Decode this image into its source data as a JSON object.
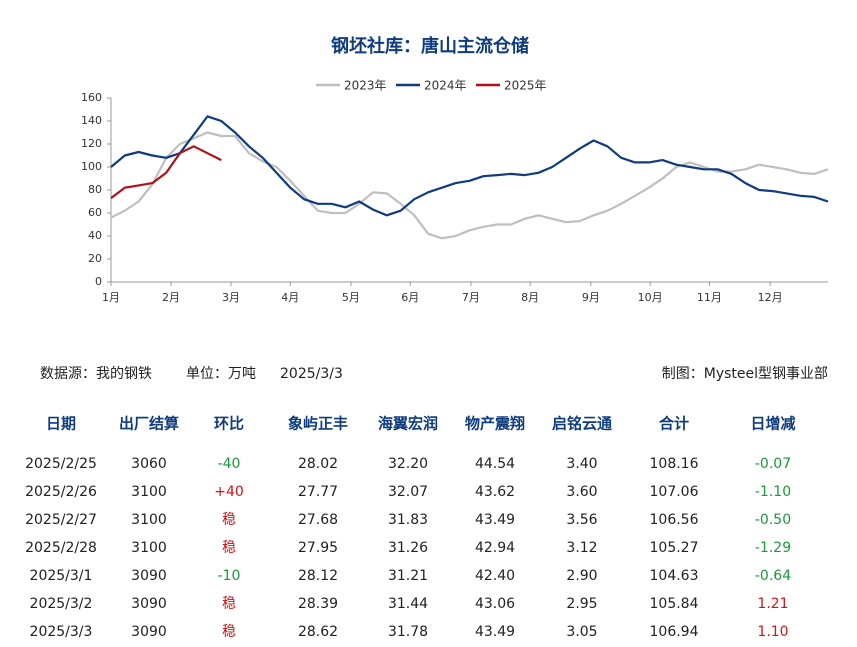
{
  "chart_data": {
    "type": "line",
    "title": "钢坯社库：唐山主流仓储",
    "x": [
      0,
      1,
      2,
      3,
      4,
      5,
      6,
      7,
      8,
      9,
      10,
      11,
      12,
      13,
      14,
      15,
      16,
      17,
      18,
      19,
      20,
      21,
      22,
      23,
      24,
      25,
      26,
      27,
      28,
      29,
      30,
      31,
      32,
      33,
      34,
      35,
      36,
      37,
      38,
      39,
      40,
      41,
      42,
      43,
      44,
      45,
      46,
      47,
      48,
      49,
      50,
      51,
      52
    ],
    "xlim": [
      0,
      52
    ],
    "xticks": [
      {
        "value": 0,
        "label": "1月"
      },
      {
        "value": 4.35,
        "label": "2月"
      },
      {
        "value": 8.7,
        "label": "3月"
      },
      {
        "value": 13.0,
        "label": "4月"
      },
      {
        "value": 17.4,
        "label": "5月"
      },
      {
        "value": 21.7,
        "label": "6月"
      },
      {
        "value": 26.1,
        "label": "7月"
      },
      {
        "value": 30.4,
        "label": "8月"
      },
      {
        "value": 34.8,
        "label": "9月"
      },
      {
        "value": 39.1,
        "label": "10月"
      },
      {
        "value": 43.4,
        "label": "11月"
      },
      {
        "value": 47.8,
        "label": "12月"
      }
    ],
    "ylim": [
      0,
      160
    ],
    "yticks": [
      0,
      20,
      40,
      60,
      80,
      100,
      120,
      140,
      160
    ],
    "legend": "top",
    "series": [
      {
        "name": "2023年",
        "color": "#bfbfbf",
        "values": [
          56,
          62,
          70,
          85,
          108,
          120,
          125,
          130,
          127,
          127,
          112,
          105,
          100,
          88,
          75,
          62,
          60,
          60,
          68,
          78,
          77,
          68,
          58,
          42,
          38,
          40,
          45,
          48,
          50,
          50,
          55,
          58,
          55,
          52,
          53,
          58,
          62,
          68,
          75,
          82,
          90,
          100,
          104,
          100,
          96,
          96,
          98,
          102,
          100,
          98,
          95,
          94,
          98
        ]
      },
      {
        "name": "2024年",
        "color": "#0f3b7f",
        "values": [
          100,
          110,
          113,
          110,
          108,
          112,
          128,
          144,
          140,
          130,
          118,
          108,
          95,
          82,
          72,
          68,
          68,
          65,
          70,
          63,
          58,
          62,
          72,
          78,
          82,
          86,
          88,
          92,
          93,
          94,
          93,
          95,
          100,
          108,
          116,
          123,
          118,
          108,
          104,
          104,
          106,
          102,
          100,
          98,
          98,
          94,
          86,
          80,
          79,
          77,
          75,
          74,
          70
        ]
      },
      {
        "name": "2025年",
        "color": "#b01018",
        "values": [
          73,
          82,
          84,
          86,
          95,
          112,
          118,
          112,
          106,
          null,
          null,
          null,
          null,
          null,
          null,
          null,
          null,
          null,
          null,
          null,
          null,
          null,
          null,
          null,
          null,
          null,
          null,
          null,
          null,
          null,
          null,
          null,
          null,
          null,
          null,
          null,
          null,
          null,
          null,
          null,
          null,
          null,
          null,
          null,
          null,
          null,
          null,
          null,
          null,
          null,
          null,
          null,
          null
        ]
      }
    ]
  },
  "info": {
    "source": "数据源：我的钢铁",
    "unit": "单位：万吨",
    "date": "2025/3/3",
    "credit": "制图：Mysteel型钢事业部"
  },
  "table": {
    "header": [
      "日期",
      "出厂结算",
      "环比",
      "象屿正丰",
      "海翼宏润",
      "物产震翔",
      "启铭云通",
      "合计",
      "日增减"
    ],
    "rows": [
      [
        "2025/2/25",
        "3060",
        "-40",
        "28.02",
        "32.20",
        "44.54",
        "3.40",
        "108.16",
        "-0.07"
      ],
      [
        "2025/2/26",
        "3100",
        "+40",
        "27.77",
        "32.07",
        "43.62",
        "3.60",
        "107.06",
        "-1.10"
      ],
      [
        "2025/2/27",
        "3100",
        "稳",
        "27.68",
        "31.83",
        "43.49",
        "3.56",
        "106.56",
        "-0.50"
      ],
      [
        "2025/2/28",
        "3100",
        "稳",
        "27.95",
        "31.26",
        "42.94",
        "3.12",
        "105.27",
        "-1.29"
      ],
      [
        "2025/3/1",
        "3090",
        "-10",
        "28.12",
        "31.21",
        "42.40",
        "2.90",
        "104.63",
        "-0.64"
      ],
      [
        "2025/3/2",
        "3090",
        "稳",
        "28.39",
        "31.44",
        "43.06",
        "2.95",
        "105.84",
        "1.21"
      ],
      [
        "2025/3/3",
        "3090",
        "稳",
        "28.62",
        "31.78",
        "43.49",
        "3.05",
        "106.94",
        "1.10"
      ]
    ]
  }
}
